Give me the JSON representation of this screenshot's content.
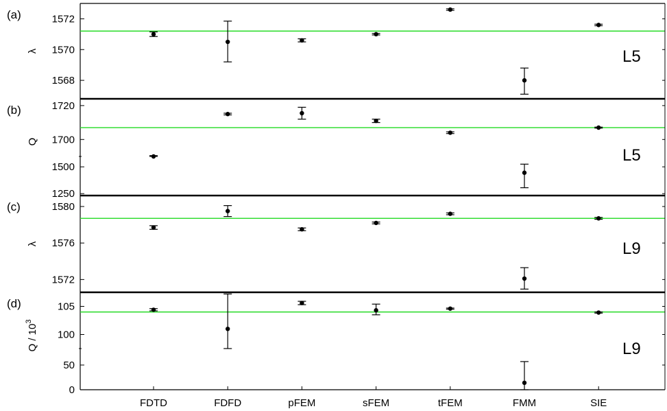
{
  "chart_data": {
    "type": "scatter",
    "methods": [
      "FDTD",
      "FDFD",
      "pFEM",
      "sFEM",
      "tFEM",
      "FMM",
      "SIE"
    ],
    "reference_color": "#33dd33",
    "panels": [
      {
        "id": "a",
        "label": "(a)",
        "ylabel": "λ",
        "model": "L5",
        "ylim": [
          1566.8,
          1573.0
        ],
        "yticks": [
          1568,
          1570,
          1572
        ],
        "reference": 1571.2,
        "points": [
          {
            "method": "FDTD",
            "value": 1571.0,
            "lo": 1570.85,
            "hi": 1571.15
          },
          {
            "method": "FDFD",
            "value": 1570.5,
            "lo": 1569.2,
            "hi": 1571.85
          },
          {
            "method": "pFEM",
            "value": 1570.6,
            "lo": 1570.5,
            "hi": 1570.7
          },
          {
            "method": "sFEM",
            "value": 1571.0,
            "lo": 1570.95,
            "hi": 1571.05
          },
          {
            "method": "tFEM",
            "value": 1572.6,
            "lo": 1572.55,
            "hi": 1572.65
          },
          {
            "method": "FMM",
            "value": 1568.0,
            "lo": 1567.1,
            "hi": 1568.8
          },
          {
            "method": "SIE",
            "value": 1571.6,
            "lo": 1571.55,
            "hi": 1571.65
          }
        ]
      },
      {
        "id": "b",
        "label": "(b)",
        "ylabel": "Q",
        "model": "L5",
        "broken_axis": true,
        "upper": {
          "ylim": [
            1690,
            1724
          ],
          "yticks": [
            1700,
            1720
          ]
        },
        "lower": {
          "ylim": [
            1232,
            1565
          ],
          "yticks": [
            1250,
            1500
          ]
        },
        "reference": 1707,
        "points": [
          {
            "method": "FDTD",
            "value": 1690,
            "lo": 1689.5,
            "hi": 1690.5
          },
          {
            "method": "FDFD",
            "value": 1715,
            "lo": 1714.5,
            "hi": 1715.5
          },
          {
            "method": "pFEM",
            "value": 1715.5,
            "lo": 1712,
            "hi": 1719
          },
          {
            "method": "sFEM",
            "value": 1711,
            "lo": 1710,
            "hi": 1712
          },
          {
            "method": "tFEM",
            "value": 1704,
            "lo": 1703.5,
            "hi": 1704.5
          },
          {
            "method": "FMM",
            "value": 1445,
            "lo": 1305,
            "hi": 1525
          },
          {
            "method": "SIE",
            "value": 1707,
            "lo": 1706.7,
            "hi": 1707.3
          }
        ]
      },
      {
        "id": "c",
        "label": "(c)",
        "ylabel": "λ",
        "model": "L9",
        "ylim": [
          1570.6,
          1581.2
        ],
        "yticks": [
          1572,
          1576,
          1580
        ],
        "reference": 1578.7,
        "points": [
          {
            "method": "FDTD",
            "value": 1577.7,
            "lo": 1577.5,
            "hi": 1577.9
          },
          {
            "method": "FDFD",
            "value": 1579.5,
            "lo": 1578.9,
            "hi": 1580.1
          },
          {
            "method": "pFEM",
            "value": 1577.5,
            "lo": 1577.35,
            "hi": 1577.65
          },
          {
            "method": "sFEM",
            "value": 1578.2,
            "lo": 1578.1,
            "hi": 1578.3
          },
          {
            "method": "tFEM",
            "value": 1579.2,
            "lo": 1579.1,
            "hi": 1579.3
          },
          {
            "method": "FMM",
            "value": 1572.1,
            "lo": 1570.95,
            "hi": 1573.3
          },
          {
            "method": "SIE",
            "value": 1578.7,
            "lo": 1578.6,
            "hi": 1578.8
          }
        ]
      },
      {
        "id": "d",
        "label": "(d)",
        "ylabel": "Q / 10",
        "ylabel_sup": "3",
        "model": "L9",
        "broken_axis": true,
        "upper": {
          "ylim": [
            97.5,
            107.5
          ],
          "yticks": [
            100,
            105
          ]
        },
        "lower": {
          "ylim": [
            0,
            75
          ],
          "yticks": [
            0,
            50
          ]
        },
        "reference": 104,
        "points": [
          {
            "method": "FDTD",
            "value": 104.4,
            "lo": 104.2,
            "hi": 104.6
          },
          {
            "method": "FDFD",
            "value": 101.0,
            "lo": 94.0,
            "hi": 107.2
          },
          {
            "method": "pFEM",
            "value": 105.6,
            "lo": 105.3,
            "hi": 105.9
          },
          {
            "method": "sFEM",
            "value": 104.3,
            "lo": 103.5,
            "hi": 105.4
          },
          {
            "method": "tFEM",
            "value": 104.6,
            "lo": 104.5,
            "hi": 104.7
          },
          {
            "method": "FMM",
            "value": 14,
            "lo": 0,
            "hi": 57
          },
          {
            "method": "SIE",
            "value": 103.9,
            "lo": 103.8,
            "hi": 104.0
          }
        ]
      }
    ]
  }
}
